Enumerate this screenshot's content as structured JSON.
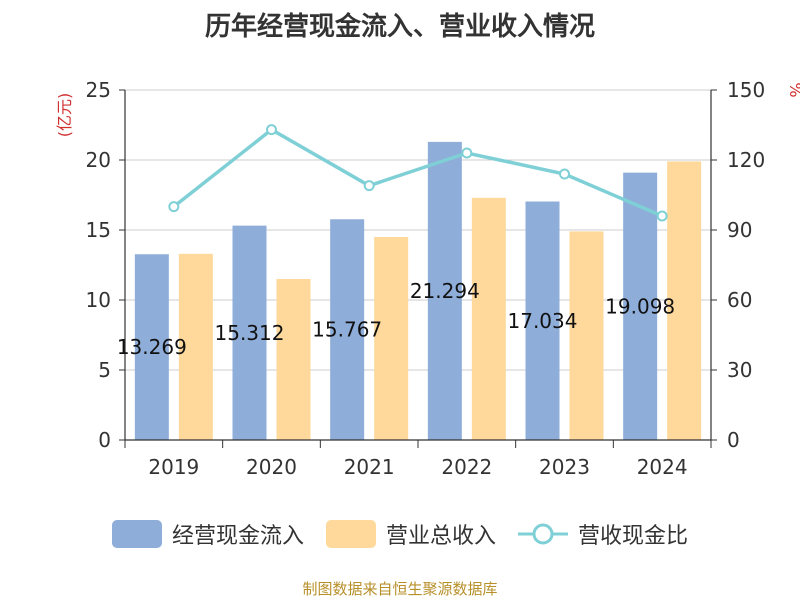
{
  "chart_data": {
    "type": "bar",
    "title": "历年经营现金流入、营业收入情况",
    "categories": [
      "2019",
      "2020",
      "2021",
      "2022",
      "2023",
      "2024"
    ],
    "y_left_unit": "(亿元)",
    "y_right_unit": "%",
    "ylim_left": [
      0,
      25
    ],
    "ylim_right": [
      0,
      150
    ],
    "yticks_left": [
      "0",
      "5",
      "10",
      "15",
      "20",
      "25"
    ],
    "yticks_right": [
      "0",
      "30",
      "60",
      "90",
      "120",
      "150"
    ],
    "grid": true,
    "legend_position": "bottom",
    "series": [
      {
        "name": "经营现金流入",
        "type": "bar",
        "axis": "left",
        "color": "#8eadd9",
        "values": [
          13.269,
          15.312,
          15.767,
          21.294,
          17.034,
          19.098
        ],
        "labels": [
          "13.269",
          "15.312",
          "15.767",
          "21.294",
          "17.034",
          "19.098"
        ]
      },
      {
        "name": "营业总收入",
        "type": "bar",
        "axis": "left",
        "color": "#fed99b",
        "values": [
          13.3,
          11.5,
          14.5,
          17.3,
          14.9,
          19.9
        ]
      },
      {
        "name": "营收现金比",
        "type": "line",
        "axis": "right",
        "color": "#7fd0d6",
        "values": [
          100,
          133,
          109,
          123,
          114,
          96
        ]
      }
    ]
  },
  "source": "制图数据来自恒生聚源数据库"
}
